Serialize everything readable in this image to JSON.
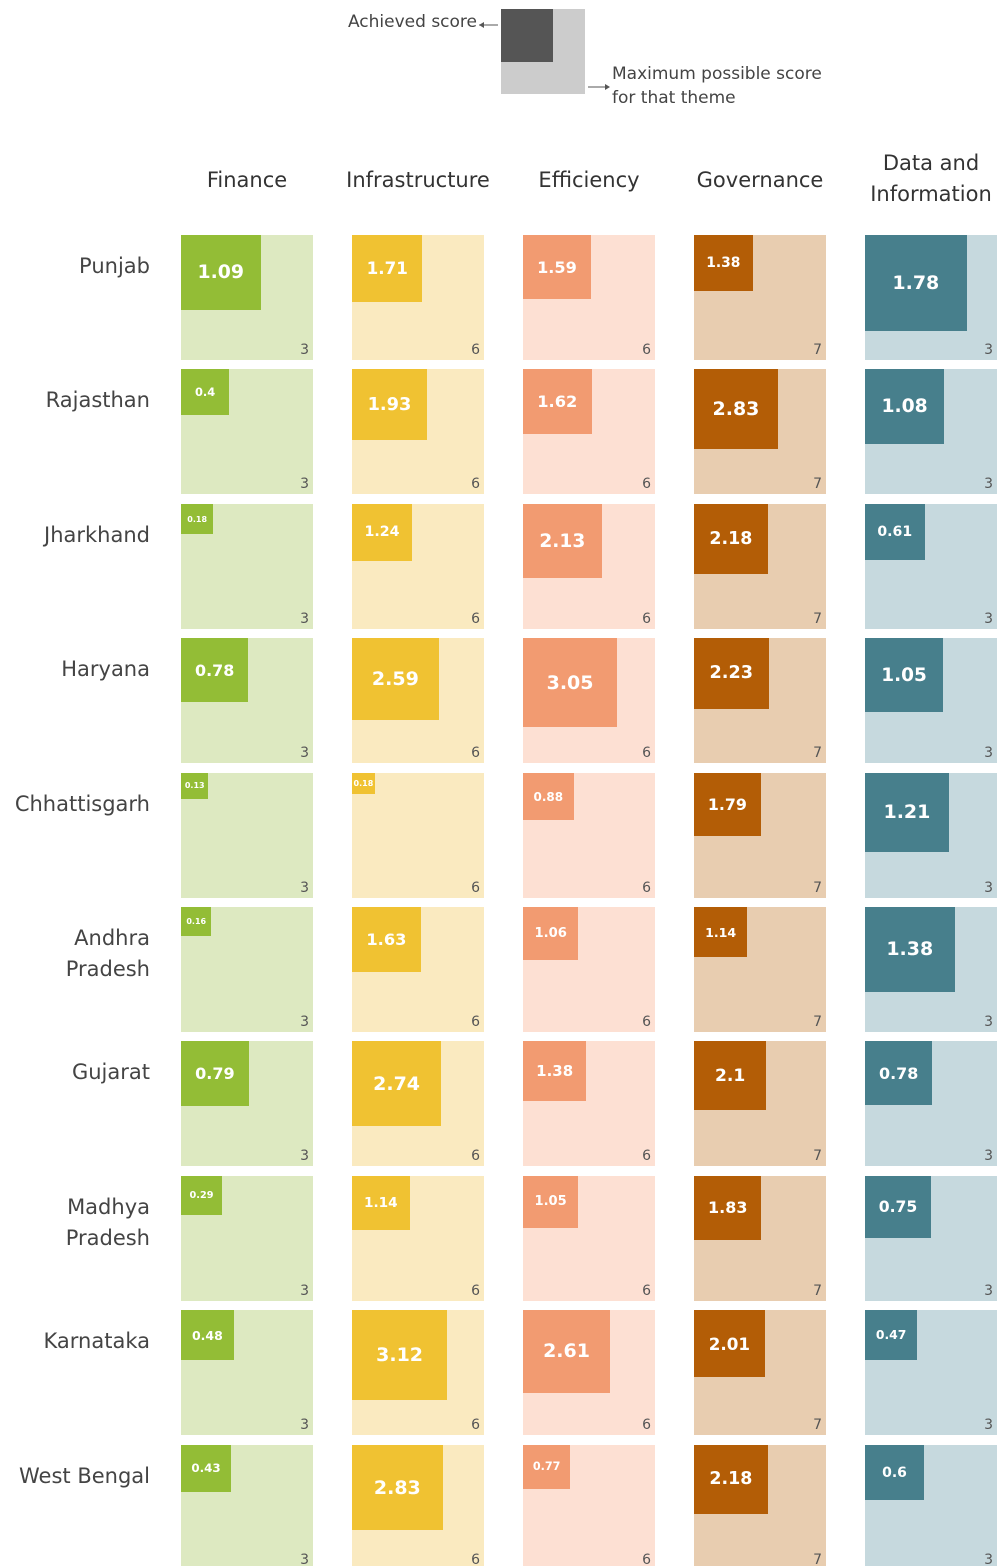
{
  "chart_data": {
    "type": "square-grid",
    "legend": {
      "achieved": "Achieved score",
      "maximum": "Maximum possible score for that theme"
    },
    "categories": [
      "Punjab",
      "Rajasthan",
      "Jharkhand",
      "Haryana",
      "Chhattisgarh",
      "Andhra Pradesh",
      "Gujarat",
      "Madhya Pradesh",
      "Karnataka",
      "West Bengal"
    ],
    "series": [
      {
        "name": "Finance",
        "color": "#93bd36",
        "background_color": "#dde9c1",
        "max": 3,
        "values": [
          1.09,
          0.4,
          0.18,
          0.78,
          0.13,
          0.16,
          0.79,
          0.29,
          0.48,
          0.43
        ]
      },
      {
        "name": "Infrastructure",
        "color": "#f0c232",
        "background_color": "#faeac0",
        "max": 6,
        "values": [
          1.71,
          1.93,
          1.24,
          2.59,
          0.18,
          1.63,
          2.74,
          1.14,
          3.12,
          2.83
        ]
      },
      {
        "name": "Efficiency",
        "color": "#f29b71",
        "background_color": "#fde0d3",
        "max": 6,
        "values": [
          1.59,
          1.62,
          2.13,
          3.05,
          0.88,
          1.06,
          1.38,
          1.05,
          2.61,
          0.77
        ]
      },
      {
        "name": "Governance",
        "color": "#b35d06",
        "background_color": "#e8cdb0",
        "max": 7,
        "values": [
          1.38,
          2.83,
          2.18,
          2.23,
          1.79,
          1.14,
          2.1,
          1.83,
          2.01,
          2.18
        ]
      },
      {
        "name": "Data and Information",
        "color": "#477f8c",
        "background_color": "#c6d9de",
        "max": 3,
        "values": [
          1.78,
          1.08,
          0.61,
          1.05,
          1.21,
          1.38,
          0.78,
          0.75,
          0.47,
          0.6
        ]
      }
    ]
  }
}
